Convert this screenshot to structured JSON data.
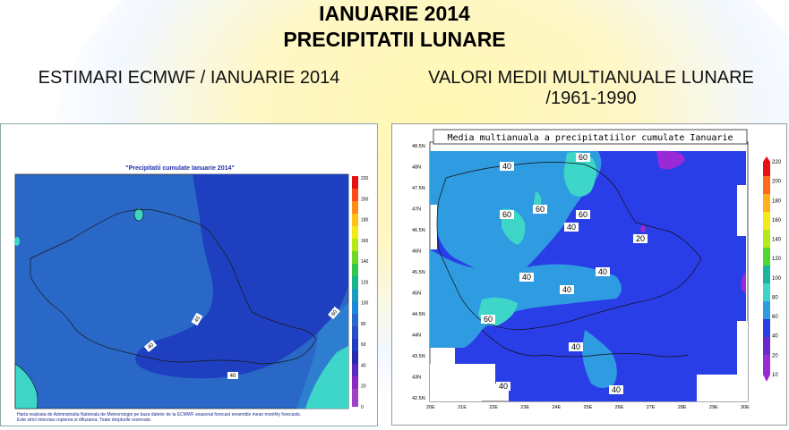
{
  "header": {
    "title_line1": "IANUARIE 2014",
    "title_line2": "PRECIPITATII LUNARE"
  },
  "left_panel": {
    "heading": "ESTIMARI ECMWF / IANUARIE 2014",
    "map_title": "\"Precipitatii cumulate Ianuarie 2014\"",
    "contour_labels": [
      "40",
      "40",
      "40",
      "60"
    ],
    "colorbar_ticks": [
      "220",
      "200",
      "180",
      "160",
      "140",
      "120",
      "100",
      "80",
      "60",
      "40",
      "20",
      "0"
    ],
    "footnote_line1": "Harta realizata de Administratia Nationala de Meteorologie pe baza datelor de la ECMWF seasonal forecast ensemble mean monthly forecasts.",
    "footnote_line2": "Este strict interzisa copierea si difuzarea. Toate drepturile rezervate."
  },
  "right_panel": {
    "heading_line1": "VALORI MEDII MULTIANUALE LUNARE",
    "heading_line2": "/1961-1990",
    "map_title": "Media multianuala a precipitatiilor cumulate Ianuarie",
    "contour_labels": [
      "40",
      "60",
      "60",
      "60",
      "60",
      "40",
      "20",
      "40",
      "40",
      "40",
      "60",
      "40",
      "40",
      "40"
    ],
    "lat_ticks": [
      "48.5N",
      "48N",
      "47.5N",
      "47N",
      "46.5N",
      "46N",
      "45.5N",
      "45N",
      "44.5N",
      "44N",
      "43.5N",
      "43N",
      "42.5N"
    ],
    "lon_ticks": [
      "20E",
      "21E",
      "22E",
      "23E",
      "24E",
      "25E",
      "26E",
      "27E",
      "28E",
      "29E",
      "30E"
    ],
    "colorbar_ticks": [
      "220",
      "200",
      "180",
      "160",
      "140",
      "120",
      "100",
      "80",
      "60",
      "40",
      "20",
      "10"
    ]
  },
  "colors": {
    "deep_blue": "#2a3ee8",
    "mid_blue": "#3366dd",
    "light_blue": "#2f9be0",
    "cyan": "#3dd6c8",
    "purple": "#9a2ad6",
    "lp_main": "#2a68c8",
    "lp_dark": "#1e3fbf"
  }
}
